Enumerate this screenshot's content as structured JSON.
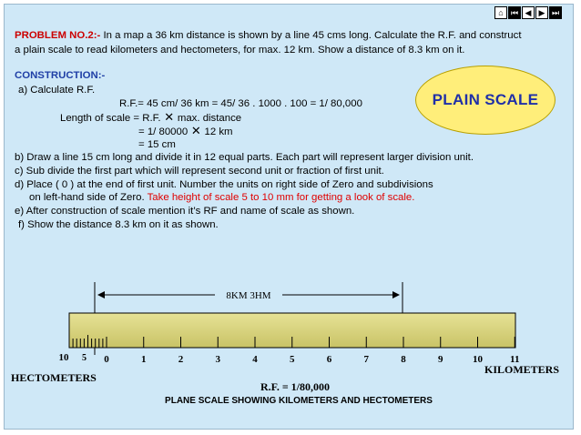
{
  "nav": {
    "home_icon": "⌂",
    "first_icon": "⏮",
    "prev_icon": "◀",
    "next_icon": "▶",
    "last_icon": "⏭"
  },
  "problem": {
    "label": "PROBLEM NO.2:-",
    "text1": " In a map a 36 km distance is shown by a line 45 cms long. Calculate the R.F. and construct",
    "text2": "a plain scale to read kilometers and hectometers, for max. 12 km. Show a distance of 8.3 km on it."
  },
  "construction": {
    "title": "CONSTRUCTION:-",
    "a": "a) Calculate R.F.",
    "rf_calc": "R.F.= 45 cm/ 36 km = 45/ 36 . 1000 . 100 = 1/ 80,000",
    "len1_a": "Length of scale = R.F.",
    "len1_b": "max. distance",
    "len2_a": "= 1/ 80000",
    "len2_b": "12 km",
    "len3": "= 15 cm",
    "b": "b) Draw a line 15 cm long and divide it in 12 equal parts. Each part will represent larger division unit.",
    "c": "c) Sub divide the first part which will represent second unit or fraction of first unit.",
    "d1": "d) Place ( 0 ) at the end of first unit. Number the units on right side of Zero and subdivisions",
    "d2a": "on left-hand side of Zero. ",
    "d2b": "Take height of scale 5 to 10 mm for getting a look of scale.",
    "e": "e) After construction of scale mention it’s RF and name of scale as shown.",
    "f": "f) Show the distance 8.3 km on it as shown."
  },
  "badge": "PLAIN SCALE",
  "scale": {
    "distance_label": "8KM  3HM",
    "left_labels": [
      "10",
      "5"
    ],
    "main_labels": [
      "0",
      "1",
      "2",
      "3",
      "4",
      "5",
      "6",
      "7",
      "8",
      "9",
      "10",
      "11"
    ],
    "hectometers": "HECTOMETERS",
    "kilometers": "KILOMETERS",
    "rf": "R.F. = 1/80,000",
    "caption": "PLANE SCALE SHOWING KILOMETERS AND HECTOMETERS",
    "bar_color": "#d6d27a",
    "bar_stripe": "#a8a04a"
  }
}
